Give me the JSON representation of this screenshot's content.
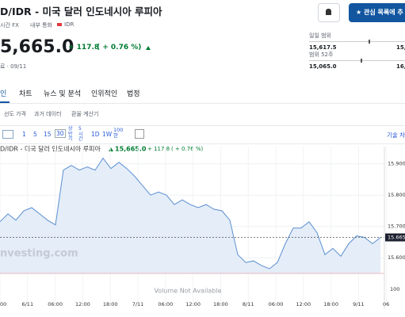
{
  "header": {
    "title": "D/IDR - 미국 달러 인도네시아 루피아",
    "market": "시간 FX",
    "currency_label": "내부 통화",
    "currency": "IDR",
    "price": "5,665.0",
    "change": "+ 117.8",
    "change_pct": "( + 0.76 %)",
    "time": "료 · 09/11",
    "watch_button": "관심 목록에 추"
  },
  "ranges": [
    {
      "label": "일일 범위",
      "low": "15,617.5",
      "high": "15,"
    },
    {
      "label": "범위 52주",
      "low": "15,065.0",
      "high": "16,"
    }
  ],
  "tabs": [
    "인",
    "차트",
    "뉴스 및 분석",
    "인위적인",
    "법정"
  ],
  "subtabs": [
    "선도 가격",
    "과거 데이터",
    "환율 계산기"
  ],
  "toolbar": {
    "intervals": [
      "1",
      "5",
      "15",
      "30",
      "상반기",
      "5시간",
      "1D",
      "1W",
      "100한"
    ],
    "technical": "기술 차"
  },
  "chart": {
    "type": "line",
    "legend_title": "D/IDR - 미국 달러 인도네시아 루피아",
    "legend_price": "15,665.0",
    "legend_change": "+ 117.8",
    "legend_change_pct": "( + 0.76 %)",
    "x_labels": [
      "00",
      "6/11",
      "06:00",
      "12:00",
      "18:00",
      "7/11",
      "06:00",
      "12:00",
      "18:00",
      "8/11",
      "06:00",
      "12:00",
      "18:00",
      "9/11",
      "06"
    ],
    "values": [
      15715,
      15740,
      15720,
      15750,
      15760,
      15740,
      15720,
      15705,
      15880,
      15895,
      15880,
      15890,
      15880,
      15918,
      15885,
      15905,
      15885,
      15860,
      15830,
      15800,
      15810,
      15800,
      15770,
      15785,
      15770,
      15760,
      15770,
      15755,
      15750,
      15720,
      15610,
      15585,
      15590,
      15575,
      15565,
      15585,
      15645,
      15695,
      15695,
      15715,
      15680,
      15610,
      15630,
      15605,
      15645,
      15670,
      15665,
      15645,
      15665
    ],
    "color": "#5b8fd1",
    "ylim": [
      15550,
      15955
    ],
    "yticks": [
      {
        "value": 15900,
        "label": "15.900"
      },
      {
        "value": 15800,
        "label": "15.800"
      },
      {
        "value": 15700,
        "label": "15.700"
      },
      {
        "value": 15600,
        "label": "15.600"
      }
    ],
    "last_price": {
      "value": 15665,
      "label": "15.665"
    },
    "volume_tick": "100",
    "volume_note": "Volume Not Available",
    "watermark": "nvesting.com",
    "grid": true
  }
}
